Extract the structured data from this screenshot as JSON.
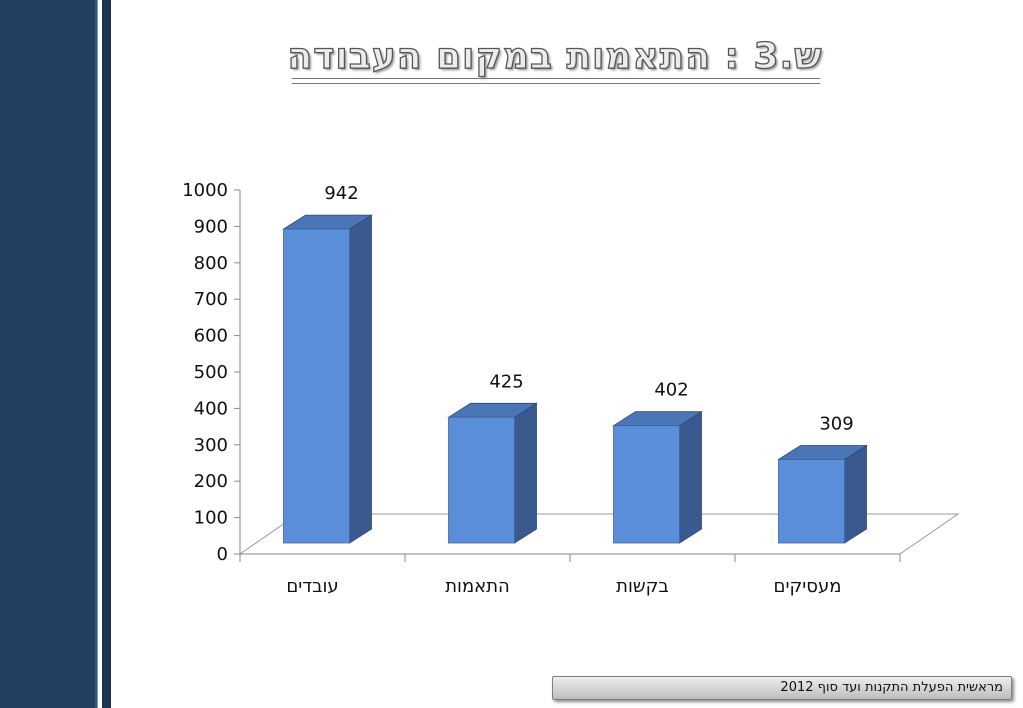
{
  "slide": {
    "title": "ש.3 : התאמות במקום העבודה",
    "footer": "מראשית הפעלת התקנות ועד סוף 2012"
  },
  "colors": {
    "side_band": "#243f5f",
    "bar_front": "#5b8ed8",
    "bar_top": "#4a76b8",
    "bar_side": "#3a5a8f"
  },
  "chart_data": {
    "type": "bar",
    "style": "3d-column",
    "categories": [
      "עובדים",
      "התאמות",
      "בקשות",
      "מעסיקים"
    ],
    "values": [
      942,
      425,
      402,
      309
    ],
    "ylim": [
      0,
      1000
    ],
    "yticks": [
      0,
      100,
      200,
      300,
      400,
      500,
      600,
      700,
      800,
      900,
      1000
    ],
    "data_labels": [
      "942",
      "425",
      "402",
      "309"
    ],
    "grid": false,
    "legend": "none"
  }
}
